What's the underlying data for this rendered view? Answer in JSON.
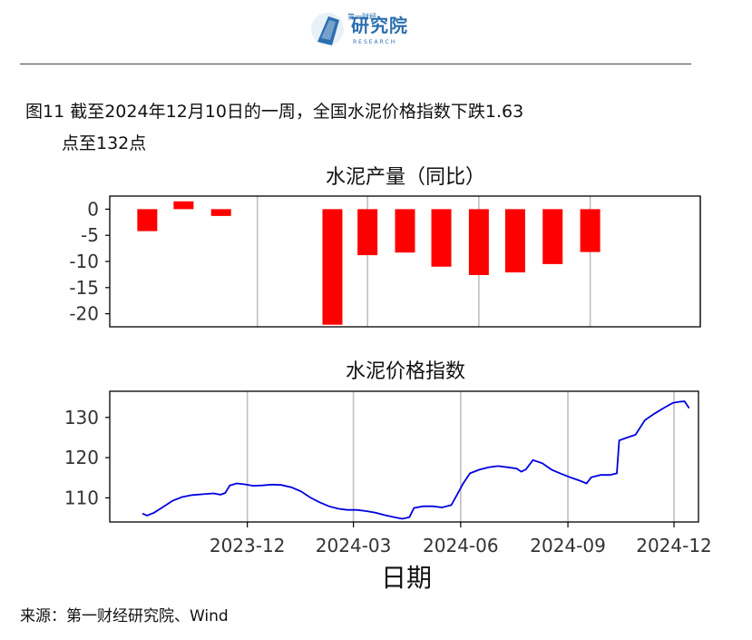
{
  "header": {
    "logo_text": "研究院",
    "logo_sub": "第一财经",
    "logo_en": "RESEARCH"
  },
  "figure": {
    "title_line1": "图11  截至2024年12月10日的一周，全国水泥价格指数下跌1.63",
    "title_line2": "点至132点"
  },
  "source": "来源：第一财经研究院、Wind",
  "colors": {
    "bar": "#ff0000",
    "line": "#0000e0",
    "grid": "#bfbfbf"
  },
  "chart_data": [
    {
      "type": "bar",
      "title": "水泥产量（同比）",
      "x": [
        "2023-09",
        "2023-10",
        "2023-11",
        "2024-02",
        "2024-03",
        "2024-04",
        "2024-05",
        "2024-06",
        "2024-07",
        "2024-08",
        "2024-09"
      ],
      "values": [
        -4.2,
        1.5,
        -1.3,
        -22.1,
        -8.8,
        -8.3,
        -11.0,
        -12.6,
        -12.1,
        -10.5,
        -8.2
      ],
      "yticks": [
        0,
        -5,
        -10,
        -15,
        -20
      ],
      "ylim": [
        -22.5,
        2.5
      ],
      "xlim": [
        "2023-08",
        "2024-12"
      ],
      "grid": true
    },
    {
      "type": "line",
      "title": "水泥价格指数",
      "xlabel": "日期",
      "xticks": [
        "2023-12",
        "2024-03",
        "2024-06",
        "2024-09",
        "2024-12"
      ],
      "yticks": [
        110,
        120,
        130
      ],
      "ylim": [
        104,
        136.5
      ],
      "xlim": [
        "2023-08-05",
        "2024-12-22"
      ],
      "grid": true,
      "points": [
        [
          "2023-09-02",
          106.1
        ],
        [
          "2023-09-06",
          105.6
        ],
        [
          "2023-09-12",
          106.3
        ],
        [
          "2023-09-20",
          107.8
        ],
        [
          "2023-09-28",
          109.3
        ],
        [
          "2023-10-06",
          110.2
        ],
        [
          "2023-10-15",
          110.7
        ],
        [
          "2023-10-24",
          110.9
        ],
        [
          "2023-11-02",
          111.1
        ],
        [
          "2023-11-08",
          110.8
        ],
        [
          "2023-11-12",
          111.2
        ],
        [
          "2023-11-16",
          113.1
        ],
        [
          "2023-11-22",
          113.6
        ],
        [
          "2023-11-28",
          113.4
        ],
        [
          "2023-12-06",
          113.0
        ],
        [
          "2023-12-14",
          113.1
        ],
        [
          "2023-12-22",
          113.3
        ],
        [
          "2023-12-30",
          113.2
        ],
        [
          "2024-01-08",
          112.6
        ],
        [
          "2024-01-16",
          111.6
        ],
        [
          "2024-01-24",
          110.1
        ],
        [
          "2024-02-01",
          108.9
        ],
        [
          "2024-02-09",
          107.9
        ],
        [
          "2024-02-17",
          107.3
        ],
        [
          "2024-02-25",
          107.0
        ],
        [
          "2024-03-04",
          107.0
        ],
        [
          "2024-03-12",
          106.7
        ],
        [
          "2024-03-20",
          106.3
        ],
        [
          "2024-03-28",
          105.7
        ],
        [
          "2024-04-05",
          105.2
        ],
        [
          "2024-04-12",
          104.8
        ],
        [
          "2024-04-18",
          105.2
        ],
        [
          "2024-04-22",
          107.5
        ],
        [
          "2024-04-30",
          107.9
        ],
        [
          "2024-05-08",
          107.9
        ],
        [
          "2024-05-16",
          107.6
        ],
        [
          "2024-05-24",
          108.2
        ],
        [
          "2024-05-28",
          110.3
        ],
        [
          "2024-06-03",
          113.5
        ],
        [
          "2024-06-09",
          116.1
        ],
        [
          "2024-06-17",
          117.0
        ],
        [
          "2024-06-25",
          117.6
        ],
        [
          "2024-07-03",
          117.9
        ],
        [
          "2024-07-11",
          117.6
        ],
        [
          "2024-07-19",
          117.3
        ],
        [
          "2024-07-23",
          116.5
        ],
        [
          "2024-07-27",
          117.1
        ],
        [
          "2024-08-02",
          119.4
        ],
        [
          "2024-08-10",
          118.6
        ],
        [
          "2024-08-18",
          117.0
        ],
        [
          "2024-08-26",
          116.0
        ],
        [
          "2024-09-03",
          115.1
        ],
        [
          "2024-09-11",
          114.3
        ],
        [
          "2024-09-17",
          113.6
        ],
        [
          "2024-09-21",
          115.1
        ],
        [
          "2024-09-29",
          115.7
        ],
        [
          "2024-10-07",
          115.7
        ],
        [
          "2024-10-13",
          116.1
        ],
        [
          "2024-10-15",
          124.3
        ],
        [
          "2024-10-21",
          124.9
        ],
        [
          "2024-10-29",
          125.7
        ],
        [
          "2024-11-06",
          129.3
        ],
        [
          "2024-11-14",
          130.9
        ],
        [
          "2024-11-22",
          132.3
        ],
        [
          "2024-11-30",
          133.6
        ],
        [
          "2024-12-06",
          133.9
        ],
        [
          "2024-12-10",
          134.0
        ],
        [
          "2024-12-14",
          132.3
        ]
      ]
    }
  ]
}
